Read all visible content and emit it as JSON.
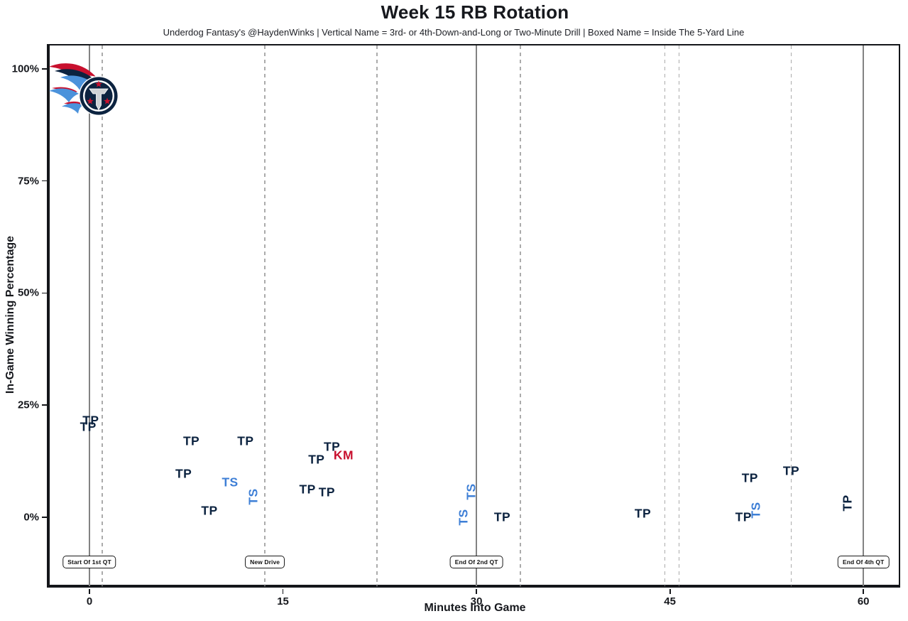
{
  "header": {
    "title": "Week 15 RB Rotation",
    "subtitle": "Underdog Fantasy's @HaydenWinks | Vertical Name = 3rd- or 4th-Down-and-Long or Two-Minute Drill | Boxed Name = Inside The 5-Yard Line"
  },
  "chart_data": {
    "type": "scatter",
    "title": "Week 15 RB Rotation",
    "xlabel": "Minutes Into Game",
    "ylabel": "In-Game Winning Percentage",
    "x_ticks": [
      0,
      15,
      30,
      45,
      60
    ],
    "y_ticks": [
      0,
      25,
      50,
      75,
      100
    ],
    "y_tick_suffix": "%",
    "xlim": [
      -3.3,
      63.2
    ],
    "ylim": [
      -15.8,
      105.5
    ],
    "grid": "vertical-lines-only",
    "legend": "none",
    "marker_style": "text-initials",
    "solid_vlines_min": [
      0,
      30,
      60
    ],
    "dashed_vlines_min": [
      1.0,
      13.6,
      22.3,
      33.4,
      44.6,
      45.7,
      54.4
    ],
    "event_labels": [
      {
        "text": "Start Of 1st QT",
        "x": 0,
        "y": -10
      },
      {
        "text": "New Drive",
        "x": 13.6,
        "y": -10
      },
      {
        "text": "End Of 2nd QT",
        "x": 30,
        "y": -10
      },
      {
        "text": "End Of 4th QT",
        "x": 60,
        "y": -10
      }
    ],
    "players": {
      "TP": {
        "color": "#0c2340"
      },
      "TS": {
        "color": "#3e7fd6"
      },
      "KM": {
        "color": "#c8102e"
      }
    },
    "points": [
      {
        "label": "TP",
        "x": 0.1,
        "y": 21.6,
        "vertical": false
      },
      {
        "label": "TP",
        "x": -0.1,
        "y": 20.1,
        "vertical": false
      },
      {
        "label": "TP",
        "x": 7.3,
        "y": 9.7,
        "vertical": false
      },
      {
        "label": "TP",
        "x": 7.9,
        "y": 17.0,
        "vertical": false
      },
      {
        "label": "TP",
        "x": 9.3,
        "y": 1.4,
        "vertical": false
      },
      {
        "label": "TS",
        "x": 10.9,
        "y": 7.8,
        "vertical": false
      },
      {
        "label": "TP",
        "x": 12.1,
        "y": 16.9,
        "vertical": false
      },
      {
        "label": "TS",
        "x": 12.7,
        "y": 4.6,
        "vertical": true
      },
      {
        "label": "TP",
        "x": 16.9,
        "y": 6.2,
        "vertical": false
      },
      {
        "label": "TP",
        "x": 17.6,
        "y": 12.8,
        "vertical": false
      },
      {
        "label": "TP",
        "x": 18.4,
        "y": 5.6,
        "vertical": false
      },
      {
        "label": "TP",
        "x": 18.8,
        "y": 15.7,
        "vertical": false
      },
      {
        "label": "KM",
        "x": 19.7,
        "y": 13.8,
        "vertical": false
      },
      {
        "label": "TS",
        "x": 29.0,
        "y": 0.0,
        "vertical": true
      },
      {
        "label": "TS",
        "x": 29.6,
        "y": 5.7,
        "vertical": true
      },
      {
        "label": "TP",
        "x": 32.0,
        "y": 0.0,
        "vertical": false
      },
      {
        "label": "TP",
        "x": 42.9,
        "y": 0.8,
        "vertical": false
      },
      {
        "label": "TP",
        "x": 50.7,
        "y": 0.0,
        "vertical": false
      },
      {
        "label": "TP",
        "x": 51.2,
        "y": 8.7,
        "vertical": false
      },
      {
        "label": "TS",
        "x": 51.7,
        "y": 1.6,
        "vertical": true
      },
      {
        "label": "TP",
        "x": 54.4,
        "y": 10.3,
        "vertical": false
      },
      {
        "label": "TP",
        "x": 58.8,
        "y": 3.2,
        "vertical": true
      }
    ],
    "logo": {
      "team": "Tennessee Titans",
      "x_min": 0.7,
      "y_pct": 94
    }
  },
  "colors": {
    "navy": "#0c2340",
    "columbia_blue": "#3e7fd6",
    "red": "#c8102e",
    "titans_light_blue": "#4b92db",
    "grid_solid": "#828282",
    "grid_dashed": "#ababab",
    "axis_border": "#14161a",
    "text": "#16181d",
    "background": "#ffffff"
  }
}
